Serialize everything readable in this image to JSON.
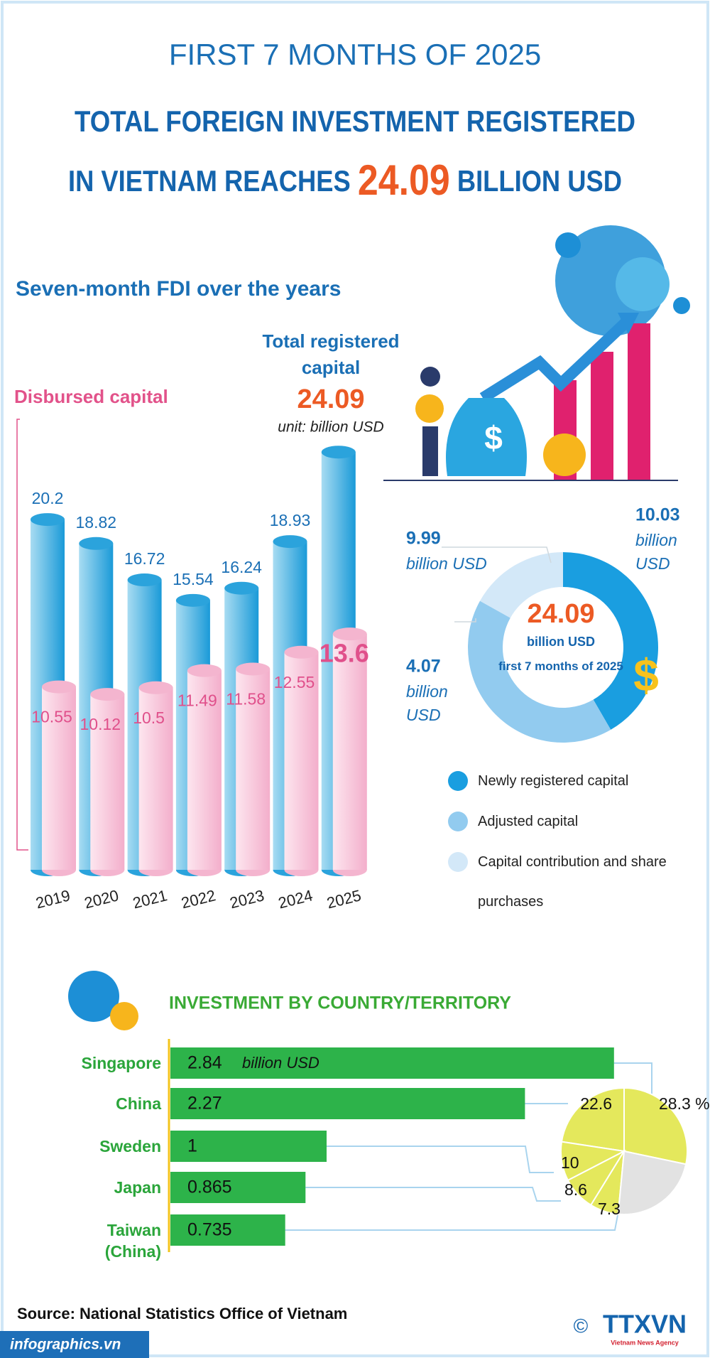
{
  "header": {
    "kicker": "FIRST 7 MONTHS OF 2025",
    "title_line1": "TOTAL FOREIGN INVESTMENT REGISTERED",
    "title_line2_start": "IN VIETNAM REACHES",
    "title_highlight": "24.09",
    "title_line2_end": "BILLION USD"
  },
  "chart_data": [
    {
      "type": "bar",
      "title": "Seven-month FDI over the years",
      "unit": "unit: billion USD",
      "categories": [
        "2019",
        "2020",
        "2021",
        "2022",
        "2023",
        "2024",
        "2025"
      ],
      "series": [
        {
          "name": "Total registered capital",
          "color": "#2ba3dc",
          "values": [
            20.2,
            18.82,
            16.72,
            15.54,
            16.24,
            18.93,
            24.09
          ]
        },
        {
          "name": "Disbursed capital",
          "color": "#f4b5cf",
          "values": [
            10.55,
            10.12,
            10.5,
            11.49,
            11.58,
            12.55,
            13.6
          ]
        }
      ]
    },
    {
      "type": "donut",
      "center_value": 24.09,
      "center_unit": "billion USD",
      "center_note": "first 7 months of 2025",
      "value_unit": "billion USD",
      "categories": [
        "Newly registered capital",
        "Adjusted capital",
        "Capital contribution and share purchases"
      ],
      "values": [
        10.03,
        9.99,
        4.07
      ],
      "colors": [
        "#1a9ee0",
        "#92cbef",
        "#d3e8f8"
      ]
    },
    {
      "type": "hbar",
      "title": "INVESTMENT BY COUNTRY/TERRITORY",
      "unit": "billion USD",
      "categories": [
        "Singapore",
        "China",
        "Sweden",
        "Japan",
        "Taiwan (China)"
      ],
      "values": [
        2.84,
        2.27,
        1,
        0.865,
        0.735
      ],
      "color": "#2db34a"
    },
    {
      "type": "pie",
      "values": [
        28.3,
        22.6,
        10,
        8.6,
        7.3,
        23.2
      ],
      "value_labels": [
        "28.3 %",
        "22.6",
        "10",
        "8.6",
        "7.3",
        null
      ],
      "colors": [
        "#e4e85c",
        "#e4e85c",
        "#e4e85c",
        "#e4e85c",
        "#e4e85c",
        "#e2e2e2"
      ]
    }
  ],
  "footer": {
    "source": "Source: National Statistics Office of Vietnam",
    "site": "infographics.vn",
    "copyright": "©",
    "agency": "TTXVN",
    "agency_full": "Vietnam News Agency"
  }
}
